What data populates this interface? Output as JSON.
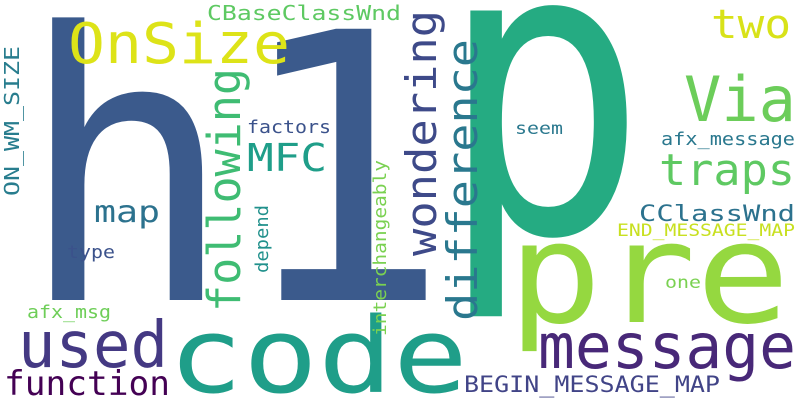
{
  "words": [
    {
      "text": "p"
    },
    {
      "text": "h1"
    },
    {
      "text": "pre"
    },
    {
      "text": "code"
    },
    {
      "text": "message"
    },
    {
      "text": "used"
    },
    {
      "text": "function"
    },
    {
      "text": "BEGIN_MESSAGE_MAP"
    },
    {
      "text": "OnSize"
    },
    {
      "text": "CBaseClassWnd"
    },
    {
      "text": "two"
    },
    {
      "text": "Via"
    },
    {
      "text": "traps"
    },
    {
      "text": "afx_message"
    },
    {
      "text": "CClassWnd"
    },
    {
      "text": "END_MESSAGE_MAP"
    },
    {
      "text": "one"
    },
    {
      "text": "seem"
    },
    {
      "text": "MFC"
    },
    {
      "text": "map"
    },
    {
      "text": "factors"
    },
    {
      "text": "depend"
    },
    {
      "text": "type"
    },
    {
      "text": "afx_msg"
    },
    {
      "text": "ON_WM_SIZE"
    },
    {
      "text": "following"
    },
    {
      "text": "wondering"
    },
    {
      "text": "difference"
    },
    {
      "text": "interchangeably"
    }
  ]
}
